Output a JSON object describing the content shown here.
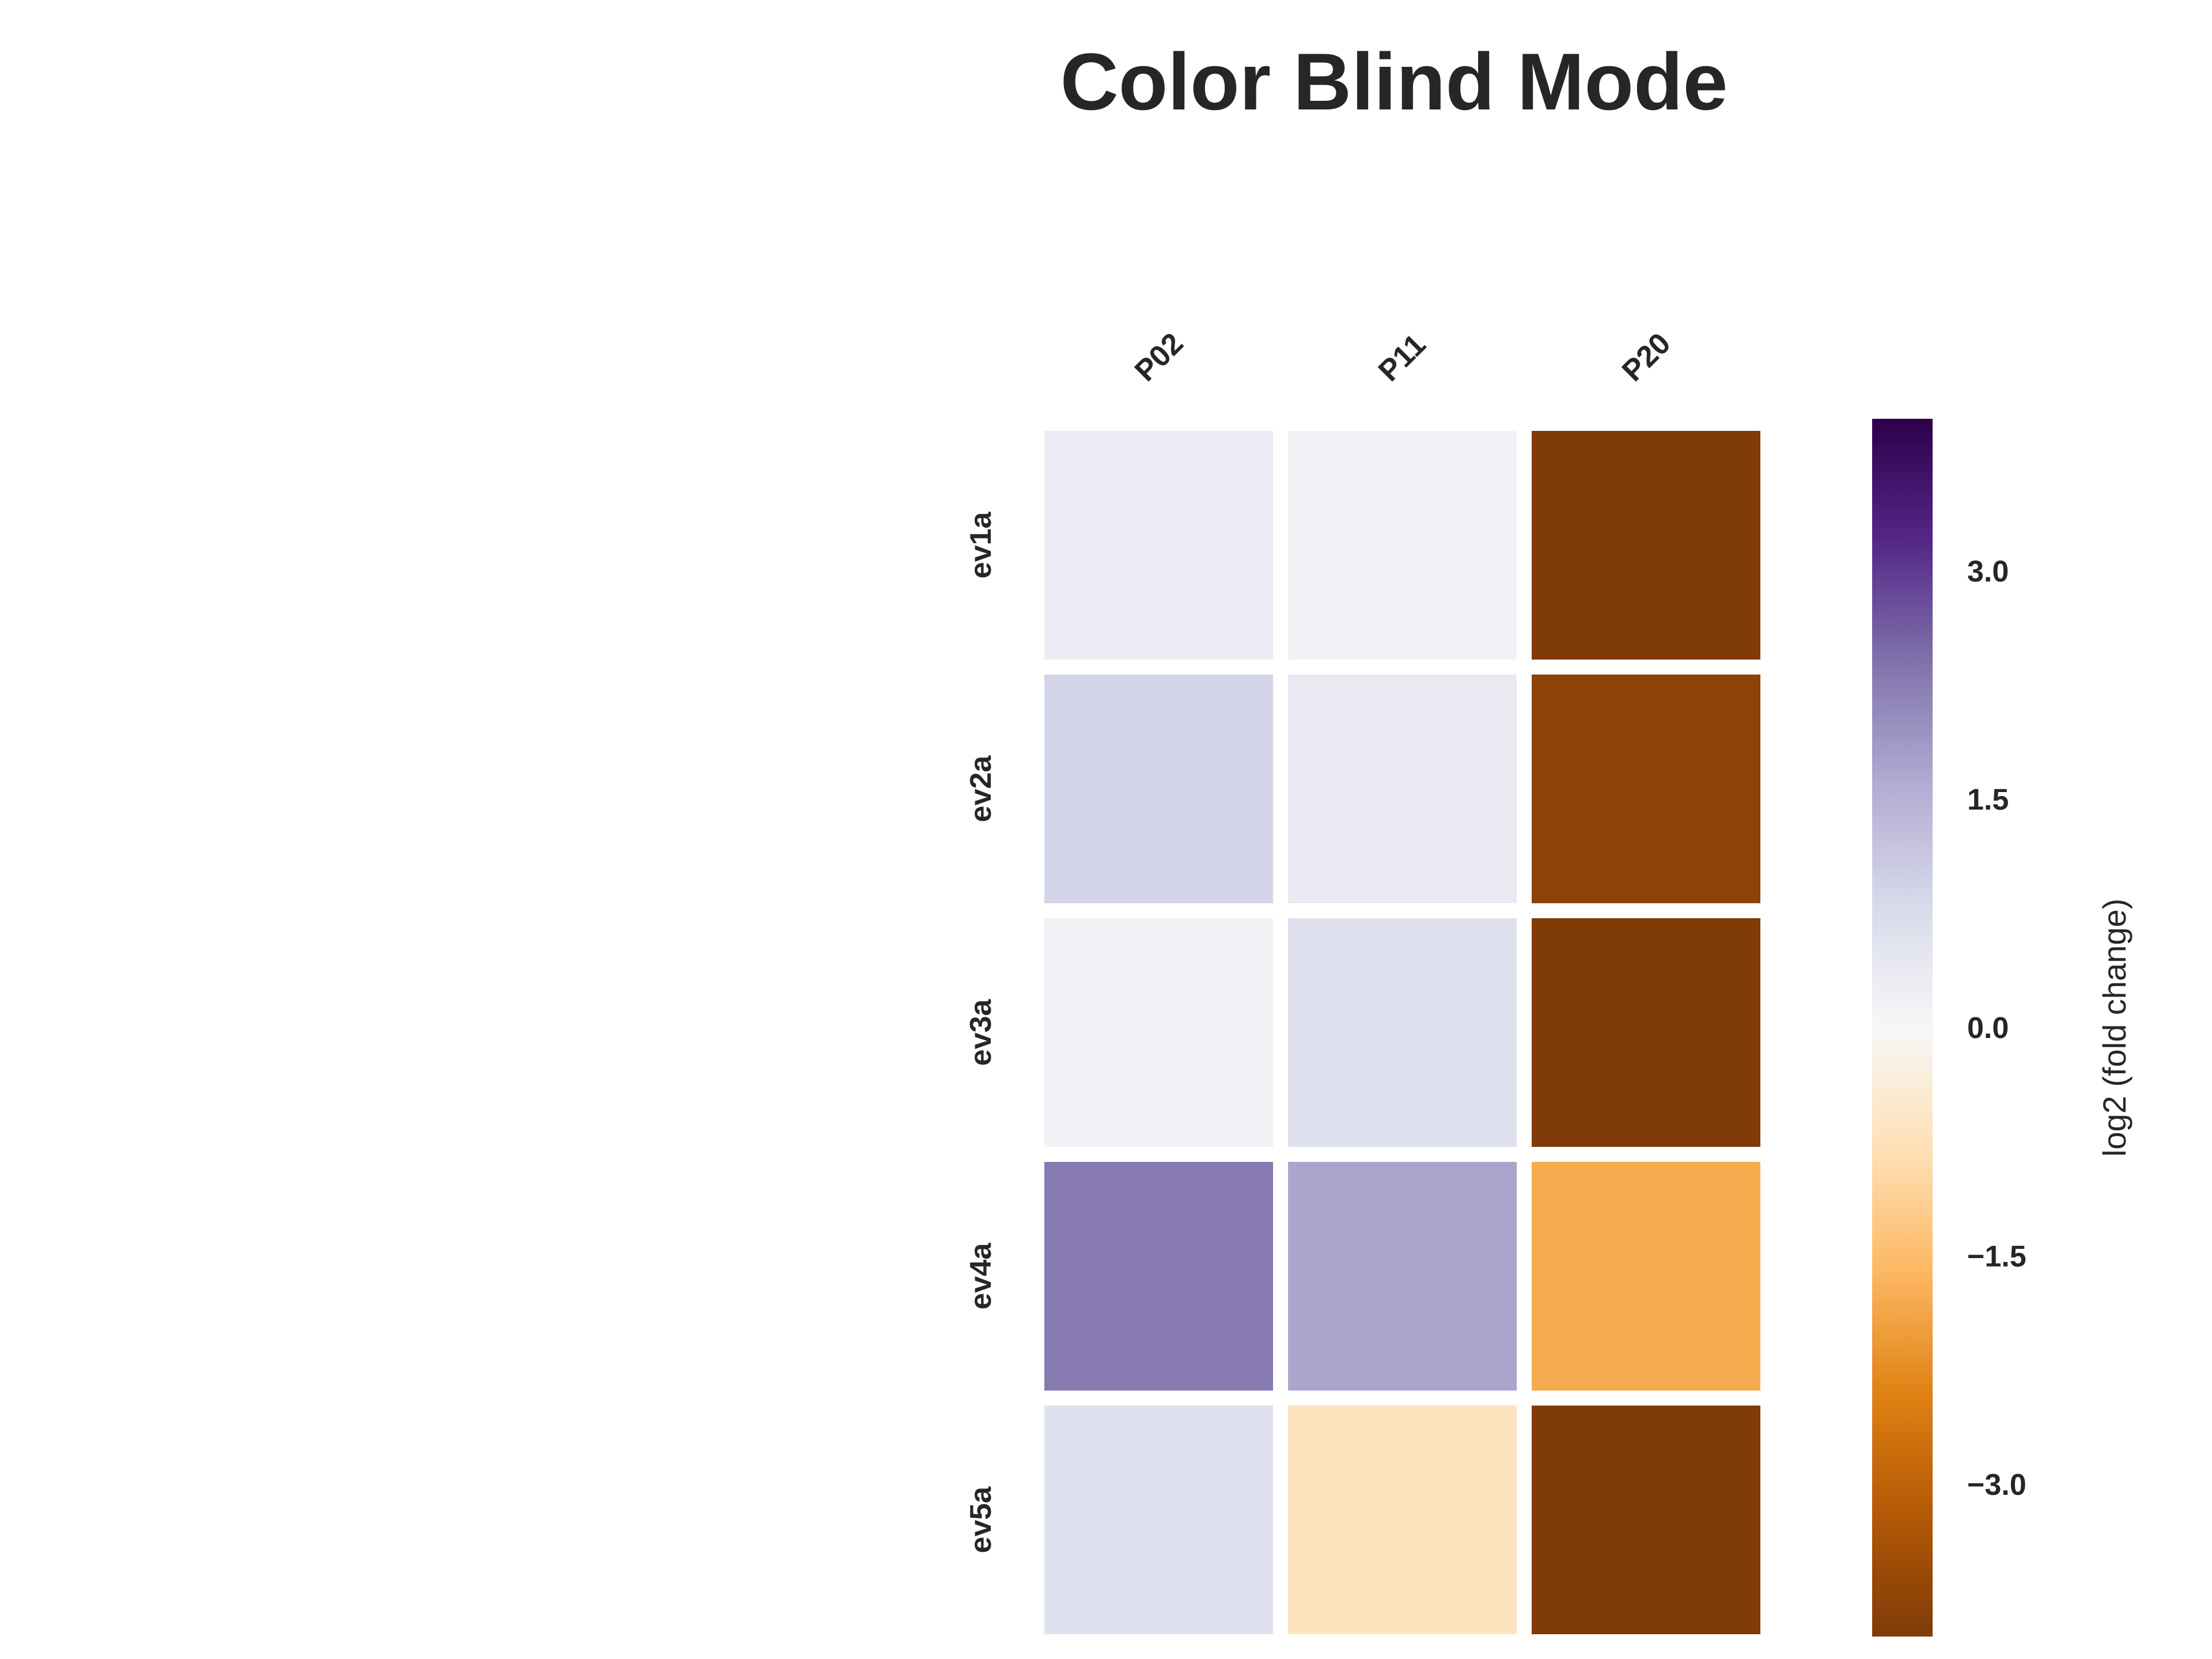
{
  "chart_data": {
    "type": "heatmap",
    "title": "Color Blind Mode",
    "columns": [
      "P02",
      "P11",
      "P20"
    ],
    "rows": [
      "ev1a",
      "ev2a",
      "ev3a",
      "ev4a",
      "ev5a"
    ],
    "values": [
      [
        0.3,
        0.15,
        -4.0
      ],
      [
        0.9,
        0.4,
        -3.8
      ],
      [
        0.15,
        0.6,
        -4.1
      ],
      [
        2.3,
        1.7,
        -1.8
      ],
      [
        0.6,
        -0.7,
        -4.2
      ]
    ],
    "colorbar": {
      "label": "log2 (fold change)",
      "range": [
        -4.0,
        4.0
      ],
      "ticks": [
        3.0,
        1.5,
        0.0,
        -1.5,
        -3.0
      ],
      "tick_labels": [
        "3.0",
        "1.5",
        "0.0",
        "−1.5",
        "−3.0"
      ],
      "colormap": "PuOr",
      "colors": [
        "#7f3b08",
        "#b35806",
        "#e08214",
        "#fdb863",
        "#fee0b6",
        "#f7f7f7",
        "#d8daeb",
        "#b2abd2",
        "#8073ac",
        "#542788",
        "#2d004b"
      ]
    },
    "grid": false,
    "cell_border_color": "#ffffff"
  }
}
